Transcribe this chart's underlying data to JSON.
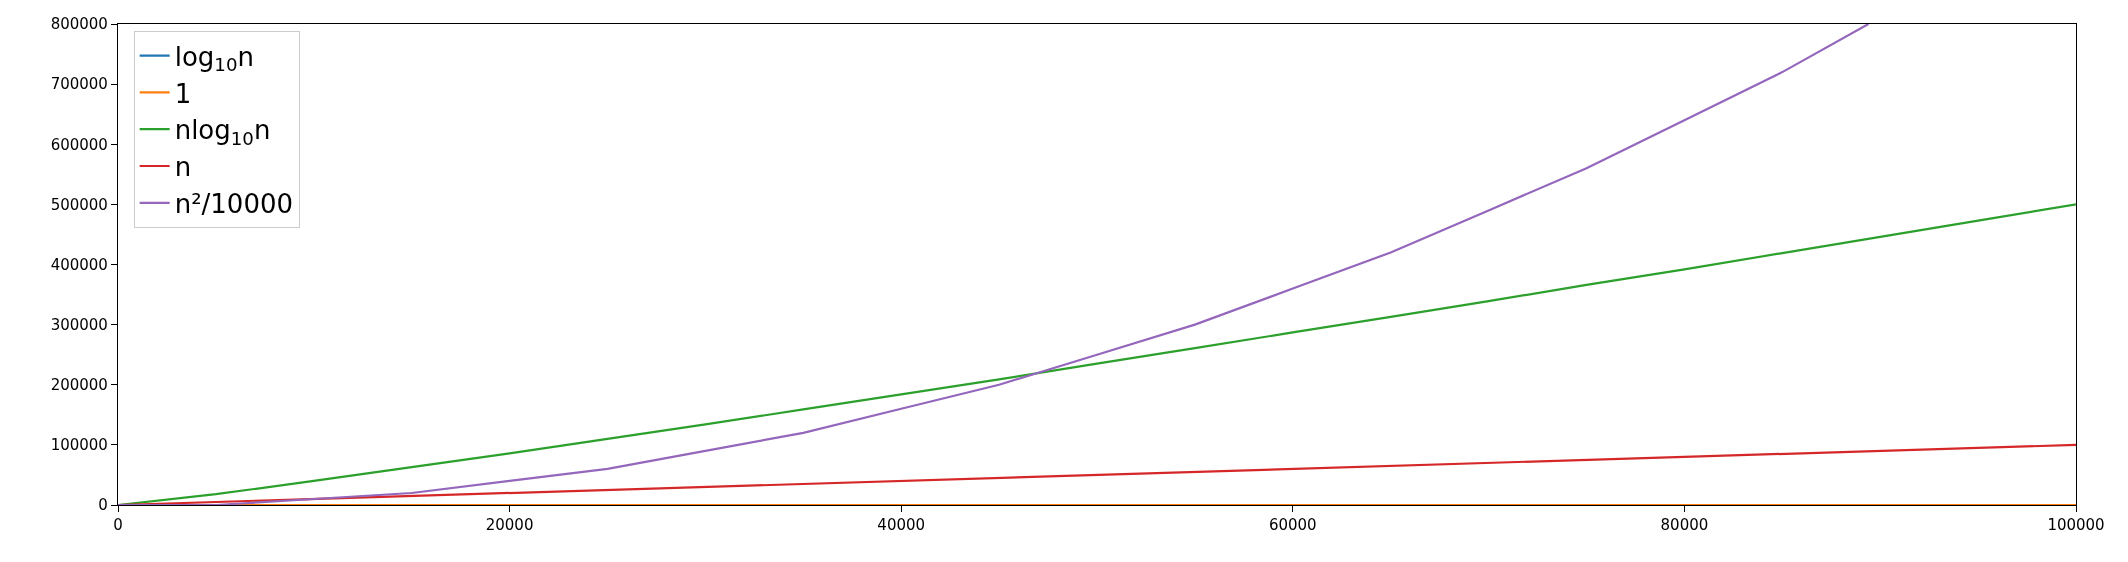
{
  "chart_data": {
    "type": "line",
    "xlim": [
      0,
      100000
    ],
    "ylim": [
      0,
      800000
    ],
    "xticks": [
      0,
      20000,
      40000,
      60000,
      80000,
      100000
    ],
    "yticks": [
      0,
      100000,
      200000,
      300000,
      400000,
      500000,
      600000,
      700000,
      800000
    ],
    "grid": false,
    "legend": "top left",
    "marker": "none",
    "line_style": "solid",
    "series": [
      {
        "name": "log$_{10}$n",
        "color": "#1f77b4",
        "values": [
          null
        ]
      },
      {
        "name": "1",
        "color": "#ff7f0e",
        "x": [
          1,
          100000
        ],
        "values": [
          0,
          0
        ]
      },
      {
        "name": "nlog$_{10}$n",
        "color": "#2ca02c",
        "x": [
          1,
          5000,
          10000,
          15000,
          20000,
          25000,
          30000,
          35000,
          40000,
          45000,
          50000,
          55000,
          60000,
          65000,
          70000,
          75000,
          80000,
          85000,
          90000,
          95000,
          100000
        ],
        "values": [
          0,
          18000,
          40000,
          63000,
          86000,
          110000,
          134000,
          159000,
          184000,
          209000,
          235000,
          261000,
          287000,
          313000,
          339000,
          366000,
          392000,
          419000,
          446000,
          473000,
          500000
        ]
      },
      {
        "name": "n",
        "color": "#d62728",
        "x": [
          0,
          100000
        ],
        "values": [
          0,
          100000
        ]
      },
      {
        "name": "n²/10000",
        "color": "#9467bd",
        "x": [
          0,
          5000,
          10000,
          15000,
          20000,
          25000,
          30000,
          35000,
          40000,
          45000,
          50000,
          55000,
          60000,
          65000,
          70000,
          75000,
          80000,
          85000,
          89400
        ],
        "values": [
          0,
          0,
          10000,
          20000,
          40000,
          60000,
          90000,
          120000,
          160000,
          200000,
          250000,
          300000,
          360000,
          420000,
          490000,
          560000,
          640000,
          720000,
          800000
        ]
      }
    ]
  }
}
